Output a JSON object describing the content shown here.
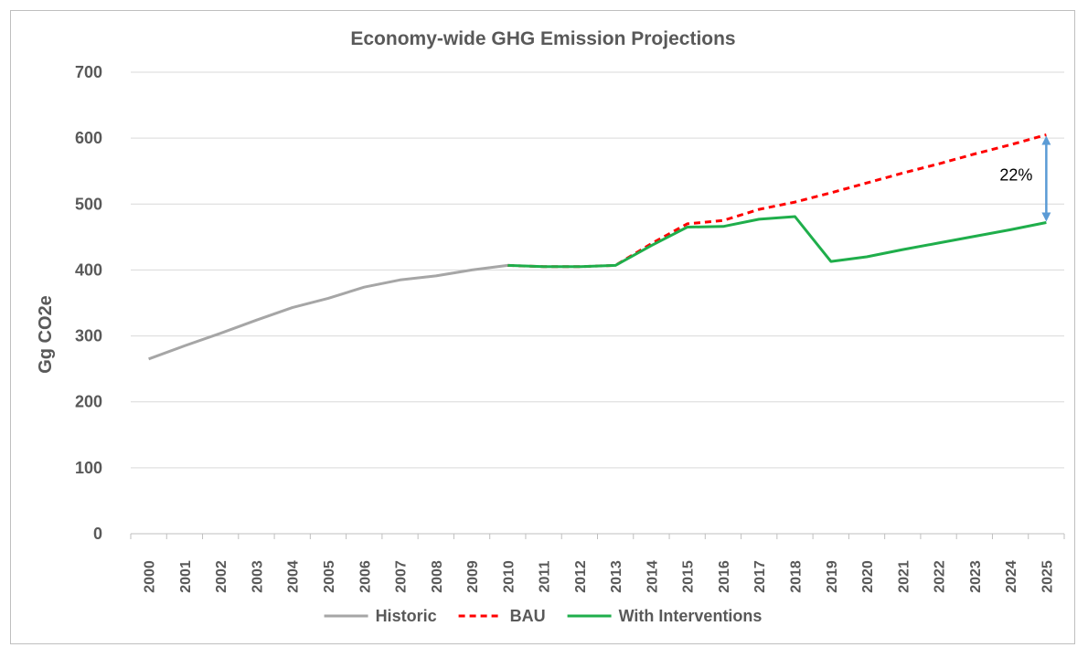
{
  "chart_data": {
    "type": "line",
    "title": "Economy-wide GHG Emission Projections",
    "ylabel": "Gg CO2e",
    "xlabel": "",
    "ylim": [
      0,
      700
    ],
    "yticks": [
      0,
      100,
      200,
      300,
      400,
      500,
      600,
      700
    ],
    "categories": [
      "2000",
      "2001",
      "2002",
      "2003",
      "2004",
      "2005",
      "2006",
      "2007",
      "2008",
      "2009",
      "2010",
      "2011",
      "2012",
      "2013",
      "2014",
      "2015",
      "2016",
      "2017",
      "2018",
      "2019",
      "2020",
      "2021",
      "2022",
      "2023",
      "2024",
      "2025"
    ],
    "grid": true,
    "legend_position": "bottom",
    "series": [
      {
        "name": "Historic",
        "color": "#a6a6a6",
        "style": "solid",
        "values": [
          265,
          285,
          304,
          324,
          343,
          357,
          374,
          385,
          391,
          400,
          407,
          null,
          null,
          null,
          null,
          null,
          null,
          null,
          null,
          null,
          null,
          null,
          null,
          null,
          null,
          null
        ]
      },
      {
        "name": "BAU",
        "color": "#ff0000",
        "style": "dashed",
        "values": [
          null,
          null,
          null,
          null,
          null,
          null,
          null,
          null,
          null,
          null,
          407,
          405,
          405,
          407,
          440,
          470,
          475,
          492,
          503,
          517,
          532,
          547,
          561,
          576,
          590,
          605
        ]
      },
      {
        "name": "With Interventions",
        "color": "#1fae4b",
        "style": "solid",
        "values": [
          null,
          null,
          null,
          null,
          null,
          null,
          null,
          null,
          null,
          null,
          407,
          405,
          405,
          407,
          437,
          465,
          466,
          477,
          481,
          413,
          420,
          431,
          441,
          451,
          461,
          472
        ]
      }
    ],
    "annotations": [
      {
        "text": "22%",
        "type": "double-arrow",
        "color": "#5b9bd5",
        "x": "2025",
        "from": 605,
        "to": 472
      }
    ]
  }
}
